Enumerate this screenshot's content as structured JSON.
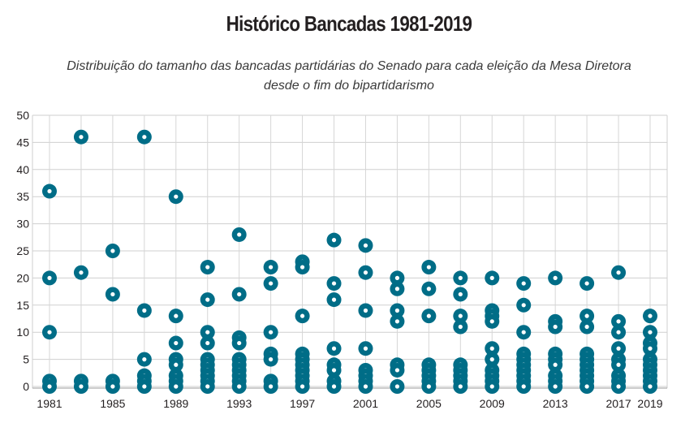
{
  "chart_data": {
    "type": "scatter",
    "title": "Histórico Bancadas 1981-2019",
    "subtitle": "Distribuição do tamanho das bancadas partidárias do Senado para cada eleição da Mesa Diretora desde o fim do bipartidarismo",
    "xlabel": "",
    "ylabel": "",
    "ylim": [
      0,
      50
    ],
    "xlim": [
      1981,
      2019
    ],
    "yticks": [
      0,
      5,
      10,
      15,
      20,
      25,
      30,
      35,
      40,
      45,
      50
    ],
    "xticks": [
      1981,
      1985,
      1989,
      1993,
      1997,
      2001,
      2005,
      2009,
      2013,
      2017,
      2019
    ],
    "grid": true,
    "marker_color": "#006d87",
    "series": [
      {
        "x": 1981,
        "values": [
          36,
          20,
          10,
          1,
          0
        ]
      },
      {
        "x": 1983,
        "values": [
          46,
          21,
          1,
          0
        ]
      },
      {
        "x": 1985,
        "values": [
          25,
          17,
          1,
          0
        ]
      },
      {
        "x": 1987,
        "values": [
          46,
          14,
          5,
          2,
          1,
          0
        ]
      },
      {
        "x": 1989,
        "values": [
          35,
          13,
          8,
          5,
          4,
          2,
          1,
          0
        ]
      },
      {
        "x": 1991,
        "values": [
          22,
          16,
          10,
          8,
          5,
          4,
          3,
          2,
          1,
          0
        ]
      },
      {
        "x": 1993,
        "values": [
          28,
          17,
          9,
          8,
          5,
          4,
          3,
          2,
          1,
          0
        ]
      },
      {
        "x": 1995,
        "values": [
          22,
          19,
          10,
          6,
          5,
          1,
          0
        ]
      },
      {
        "x": 1997,
        "values": [
          23,
          22,
          13,
          6,
          5,
          4,
          3,
          2,
          1,
          0
        ]
      },
      {
        "x": 1999,
        "values": [
          27,
          19,
          16,
          7,
          4,
          3,
          1,
          0
        ]
      },
      {
        "x": 2001,
        "values": [
          26,
          21,
          14,
          7,
          3,
          2,
          1,
          0
        ]
      },
      {
        "x": 2003,
        "values": [
          20,
          18,
          14,
          12,
          4,
          3,
          0
        ]
      },
      {
        "x": 2005,
        "values": [
          22,
          18,
          13,
          4,
          3,
          2,
          1,
          0
        ]
      },
      {
        "x": 2007,
        "values": [
          20,
          17,
          13,
          11,
          4,
          3,
          2,
          1,
          0
        ]
      },
      {
        "x": 2009,
        "values": [
          20,
          14,
          13,
          12,
          7,
          5,
          3,
          2,
          1,
          0
        ]
      },
      {
        "x": 2011,
        "values": [
          19,
          15,
          10,
          6,
          5,
          4,
          3,
          2,
          1,
          0
        ]
      },
      {
        "x": 2013,
        "values": [
          20,
          12,
          11,
          6,
          5,
          4,
          2,
          1,
          0
        ]
      },
      {
        "x": 2015,
        "values": [
          19,
          13,
          11,
          6,
          5,
          4,
          3,
          2,
          1,
          0
        ]
      },
      {
        "x": 2017,
        "values": [
          21,
          12,
          10,
          7,
          5,
          4,
          2,
          1,
          0
        ]
      },
      {
        "x": 2019,
        "values": [
          13,
          10,
          8,
          7,
          5,
          4,
          3,
          2,
          1,
          0
        ]
      }
    ]
  }
}
